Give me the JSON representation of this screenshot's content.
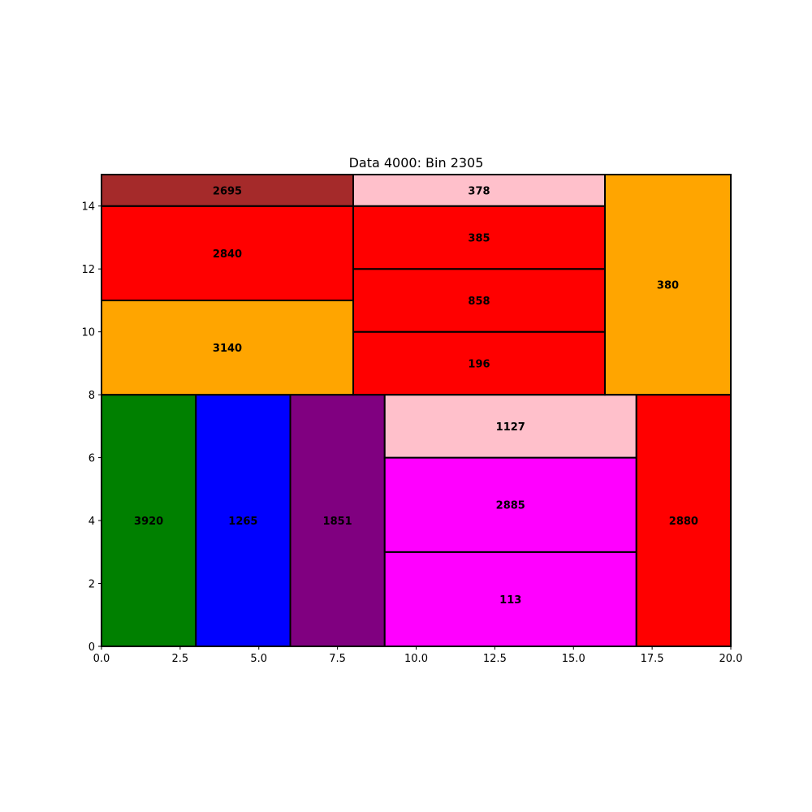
{
  "chart_data": {
    "type": "rectangle-packing",
    "title": "Data 4000: Bin 2305",
    "xlim": [
      0,
      20
    ],
    "ylim": [
      0,
      15
    ],
    "xticks": [
      0,
      2.5,
      5,
      7.5,
      10,
      12.5,
      15,
      17.5,
      20
    ],
    "xtick_labels": [
      "0.0",
      "2.5",
      "5.0",
      "7.5",
      "10.0",
      "12.5",
      "15.0",
      "17.5",
      "20.0"
    ],
    "yticks": [
      0,
      2,
      4,
      6,
      8,
      10,
      12,
      14
    ],
    "ytick_labels": [
      "0",
      "2",
      "4",
      "6",
      "8",
      "10",
      "12",
      "14"
    ],
    "grid": false,
    "boxes": [
      {
        "label": "3920",
        "x": 0,
        "y": 0,
        "w": 3,
        "h": 8,
        "color": "#008000"
      },
      {
        "label": "1265",
        "x": 3,
        "y": 0,
        "w": 3,
        "h": 8,
        "color": "#0000ff"
      },
      {
        "label": "1851",
        "x": 6,
        "y": 0,
        "w": 3,
        "h": 8,
        "color": "#800080"
      },
      {
        "label": "113",
        "x": 9,
        "y": 0,
        "w": 8,
        "h": 3,
        "color": "#ff00ff"
      },
      {
        "label": "2885",
        "x": 9,
        "y": 3,
        "w": 8,
        "h": 3,
        "color": "#ff00ff"
      },
      {
        "label": "1127",
        "x": 9,
        "y": 6,
        "w": 8,
        "h": 2,
        "color": "#ffc0cb"
      },
      {
        "label": "2880",
        "x": 17,
        "y": 0,
        "w": 3,
        "h": 8,
        "color": "#ff0000"
      },
      {
        "label": "3140",
        "x": 0,
        "y": 8,
        "w": 8,
        "h": 3,
        "color": "#ffa500"
      },
      {
        "label": "2840",
        "x": 0,
        "y": 11,
        "w": 8,
        "h": 3,
        "color": "#ff0000"
      },
      {
        "label": "2695",
        "x": 0,
        "y": 14,
        "w": 8,
        "h": 1,
        "color": "#a52a2a"
      },
      {
        "label": "196",
        "x": 8,
        "y": 8,
        "w": 8,
        "h": 2,
        "color": "#ff0000"
      },
      {
        "label": "858",
        "x": 8,
        "y": 10,
        "w": 8,
        "h": 2,
        "color": "#ff0000"
      },
      {
        "label": "385",
        "x": 8,
        "y": 12,
        "w": 8,
        "h": 2,
        "color": "#ff0000"
      },
      {
        "label": "378",
        "x": 8,
        "y": 14,
        "w": 8,
        "h": 1,
        "color": "#ffc0cb"
      },
      {
        "label": "380",
        "x": 16,
        "y": 8,
        "w": 4,
        "h": 7,
        "color": "#ffa500"
      }
    ]
  }
}
